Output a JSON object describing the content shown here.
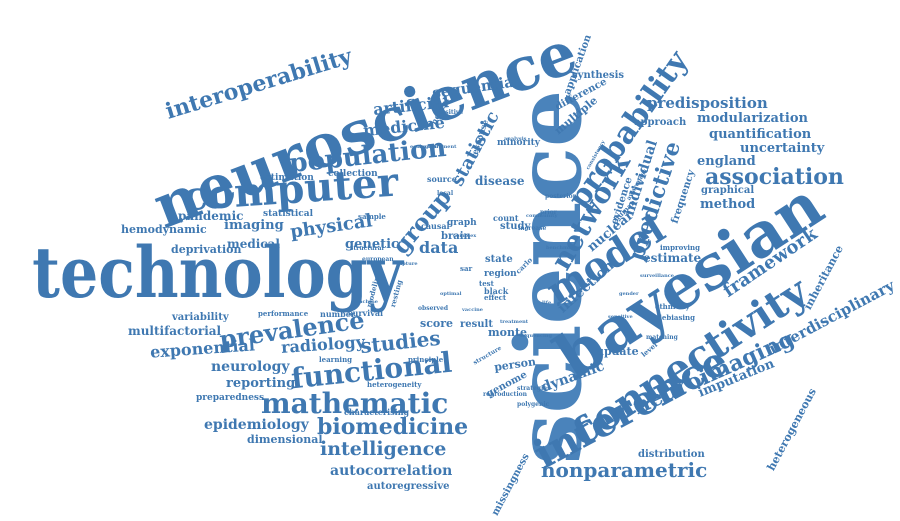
{
  "wordcloud": {
    "colors": {
      "primary": "#3f78b1",
      "secondary": "#4a83bb",
      "background": "#ffffff"
    },
    "words": [
      "technology",
      "science",
      "neuroscience",
      "bayesian",
      "computer",
      "connectivity",
      "inference",
      "model",
      "probability",
      "network",
      "functional",
      "mathematic",
      "population",
      "prevalence",
      "interoperability",
      "group",
      "predictive",
      "association",
      "neuroimaging",
      "nonparametric",
      "biomedicine",
      "intelligence",
      "studies",
      "framework",
      "interdisciplinary",
      "statistic",
      "physical",
      "medicine",
      "artificial",
      "sequential",
      "individual",
      "infection",
      "dynamic",
      "predisposition",
      "modularization",
      "quantification",
      "uncertainty",
      "england",
      "method",
      "graphical",
      "frequency",
      "heterogeneous",
      "inheritance",
      "imputation",
      "estimate",
      "neurology",
      "reporting",
      "radiology",
      "exponential",
      "multifactorial",
      "epidemiology",
      "dimensional",
      "autocorrelation",
      "autoregressive",
      "distribution",
      "missingness",
      "hemodynamic",
      "imaging",
      "pandemic",
      "deprivation",
      "medical",
      "genetic",
      "data",
      "disease",
      "minority",
      "neural",
      "response",
      "estimation",
      "collection",
      "preparedness",
      "variability",
      "performance",
      "statistical",
      "survival",
      "number",
      "characterising",
      "heterogeneity",
      "principle",
      "learning",
      "score",
      "result",
      "monte",
      "carlo",
      "state",
      "person",
      "genome",
      "update",
      "ethnicity",
      "debiasing",
      "improving",
      "nuclear",
      "human",
      "evidence",
      "approach",
      "synthesis",
      "application",
      "difference",
      "multiple",
      "brain",
      "study",
      "count",
      "test",
      "black",
      "effect",
      "graph",
      "causal",
      "sample",
      "structural",
      "european",
      "modeling",
      "resting",
      "machine",
      "positive",
      "ecological",
      "source",
      "local",
      "matching",
      "level",
      "structure",
      "reproduction",
      "strategies",
      "polygenic",
      "posterior",
      "prior",
      "increase",
      "observed",
      "vaccine",
      "treatment",
      "sequencing",
      "consistency",
      "surveillance",
      "awareness",
      "analysis",
      "measurement",
      "community",
      "benchmark",
      "complex",
      "optimal",
      "capture",
      "region",
      "sar",
      "life",
      "gender",
      "sensitive",
      "observation"
    ]
  }
}
